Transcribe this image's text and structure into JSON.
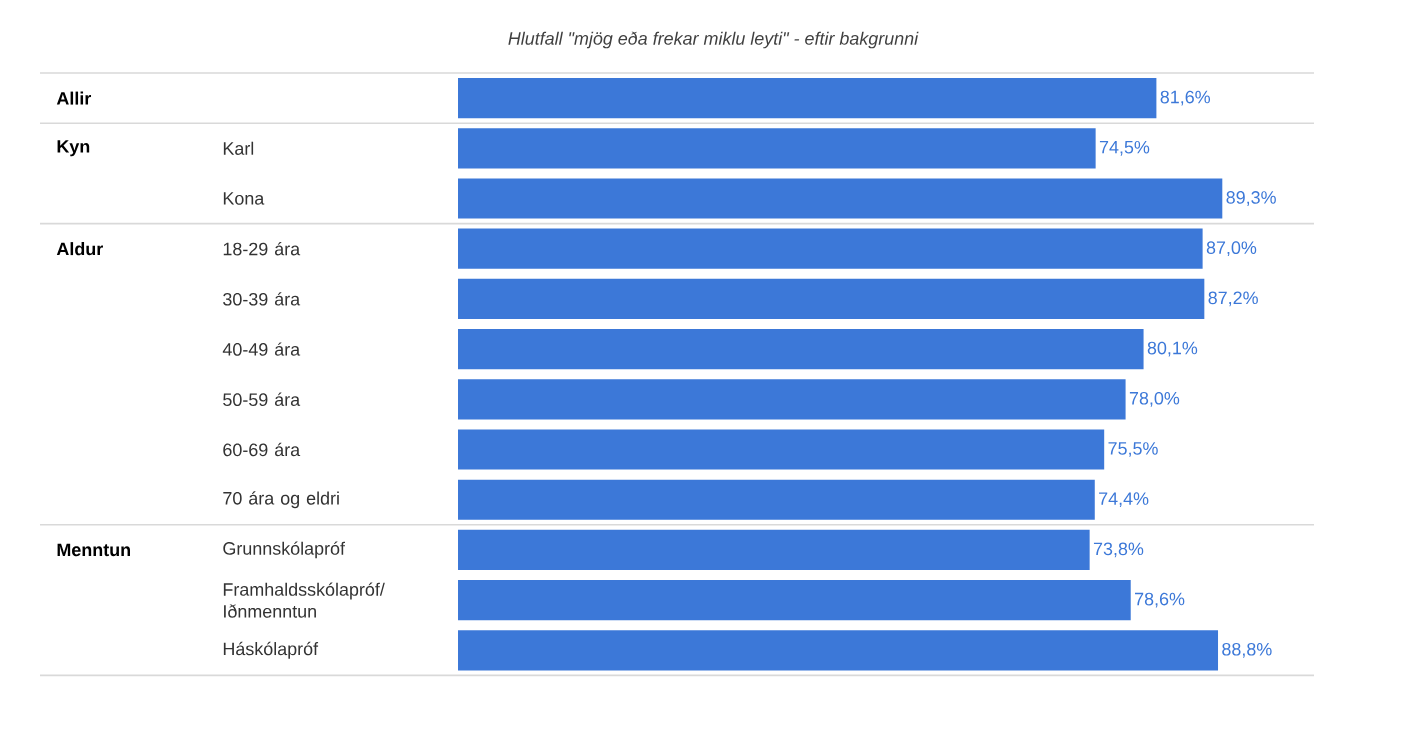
{
  "chart_data": {
    "type": "bar",
    "orientation": "horizontal",
    "title": "Hlutfall \"mjög eða frekar miklu leyti\" - eftir bakgrunni",
    "categories": [
      null,
      "Karl",
      "Kona",
      "18-29 ára",
      "30-39 ára",
      "40-49 ára",
      "50-59 ára",
      "60-69 ára",
      "70 ára og eldri",
      "Grunnskólapróf",
      "Framhaldsskólapróf/ Iðnmenntun",
      "Háskólapróf"
    ],
    "values": [
      81.6,
      74.5,
      89.3,
      87.0,
      87.2,
      80.1,
      78.0,
      75.5,
      74.4,
      73.8,
      78.6,
      88.8
    ],
    "value_labels": [
      "81,6%",
      "74,5%",
      "89,3%",
      "87,0%",
      "87,2%",
      "80,1%",
      "78,0%",
      "75,5%",
      "74,4%",
      "73,8%",
      "78,6%",
      "88,8%"
    ],
    "color": "#3c78d8",
    "annotations": [
      "Allir",
      "Kyn",
      "Aldur",
      "Menntun"
    ]
  }
}
